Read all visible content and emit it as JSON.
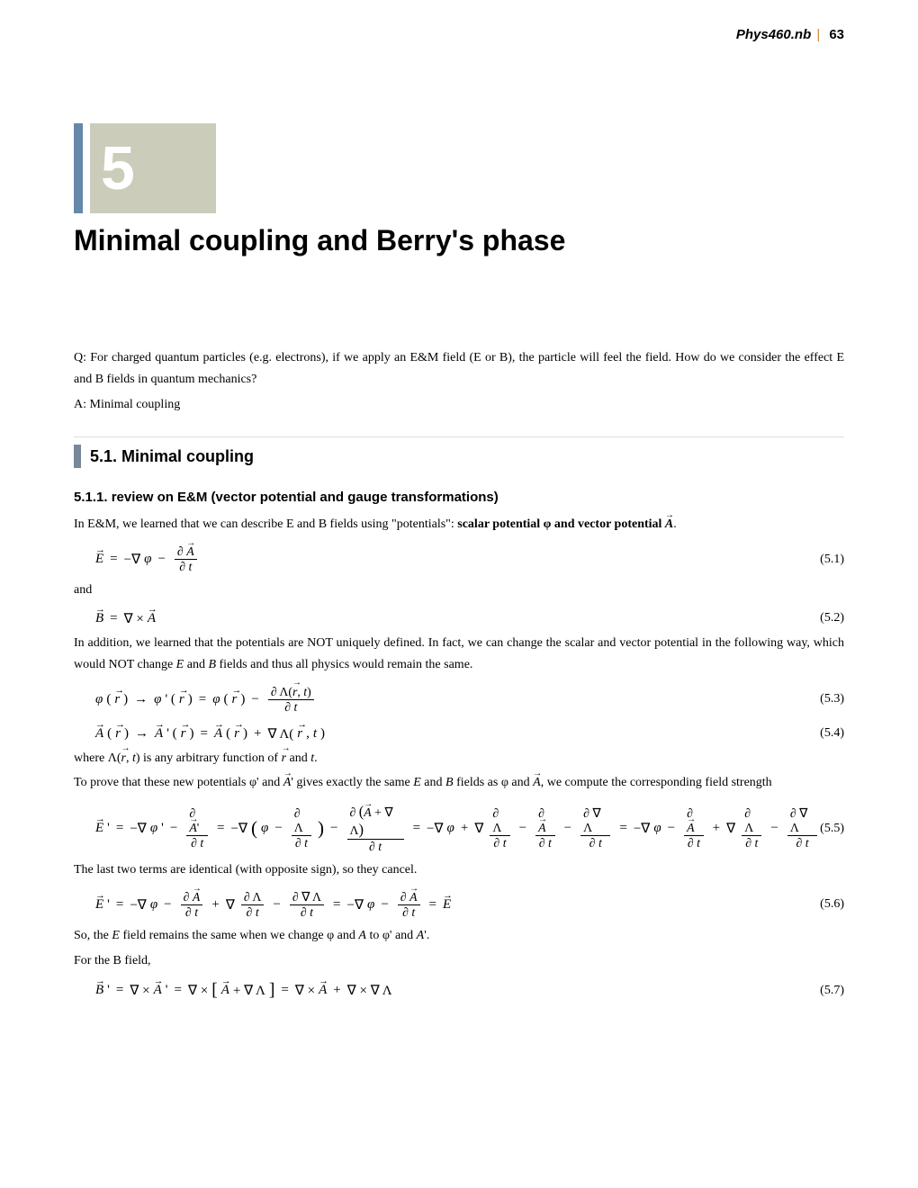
{
  "header": {
    "docname": "Phys460.nb",
    "pagenum": "63"
  },
  "chapter": {
    "number": "5",
    "title": "Minimal coupling and Berry's phase"
  },
  "intro": {
    "q": "Q: For charged quantum particles (e.g. electrons), if we apply an E&M field (E or B), the particle will feel the field. How do we consider the effect E and B fields in quantum mechanics?",
    "a": "A: Minimal coupling"
  },
  "section": {
    "number": "5.1.",
    "title": "Minimal coupling"
  },
  "subsection": {
    "title": "5.1.1. review on E&M (vector potential and gauge transformations)"
  },
  "para1_a": "In E&M, we learned that we can describe E and B fields using \"potentials\": ",
  "para1_b": "scalar potential φ  and vector potential ",
  "para1_c": ".",
  "and_text": "and",
  "para2": "In addition, we learned that the potentials are NOT uniquely defined. In fact, we can change the scalar and vector potential in the following way, which would NOT change ",
  "para2_b": " and ",
  "para2_c": " fields and thus all physics would remain the same.",
  "para3_a": "where Λ(",
  "para3_b": ", ",
  "para3_c": ") is any arbitrary function of ",
  "para3_d": " and ",
  "para3_e": ".",
  "para4_a": "To prove that these new potentials φ' and ",
  "para4_b": "' gives exactly the same ",
  "para4_c": " and ",
  "para4_d": " fields as φ and ",
  "para4_e": ", we compute the corresponding field strength",
  "para5": "The last two terms are identical (with opposite sign), so they cancel.",
  "para6_a": "So, the ",
  "para6_b": " field remains the same  when we change φ and ",
  "para6_c": " to φ' and ",
  "para6_d": "'.",
  "para7": "For the B field,",
  "eqnum": {
    "e1": "(5.1)",
    "e2": "(5.2)",
    "e3": "(5.3)",
    "e4": "(5.4)",
    "e5": "(5.5)",
    "e6": "(5.6)",
    "e7": "(5.7)"
  },
  "colors": {
    "chapter_bar": "#6688aa",
    "chapter_bg": "#ccccbb",
    "section_bar": "#778899",
    "header_sep": "#cc8833"
  }
}
